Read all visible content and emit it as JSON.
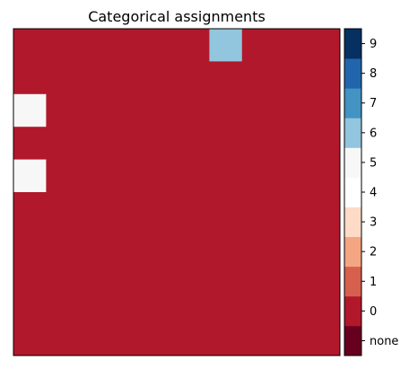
{
  "chart_data": {
    "type": "heatmap",
    "title": "Categorical assignments",
    "xlabel": "",
    "ylabel": "",
    "rows": 10,
    "cols": 10,
    "default_value": 0,
    "exceptions": [
      {
        "row": 0,
        "col": 6,
        "value": 6
      },
      {
        "row": 2,
        "col": 0,
        "value": 5
      },
      {
        "row": 4,
        "col": 0,
        "value": 5
      }
    ],
    "axes_ticks_visible": false,
    "colorbar": {
      "placement": "right",
      "levels": [
        {
          "label": "none",
          "color": "#67001f"
        },
        {
          "label": "0",
          "color": "#b2182b"
        },
        {
          "label": "1",
          "color": "#d6604d"
        },
        {
          "label": "2",
          "color": "#f4a582"
        },
        {
          "label": "3",
          "color": "#fddbc7"
        },
        {
          "label": "4",
          "color": "#ffffff"
        },
        {
          "label": "5",
          "color": "#f7f7f7"
        },
        {
          "label": "6",
          "color": "#92c5de"
        },
        {
          "label": "7",
          "color": "#4393c3"
        },
        {
          "label": "8",
          "color": "#2166ac"
        },
        {
          "label": "9",
          "color": "#053061"
        }
      ]
    }
  }
}
